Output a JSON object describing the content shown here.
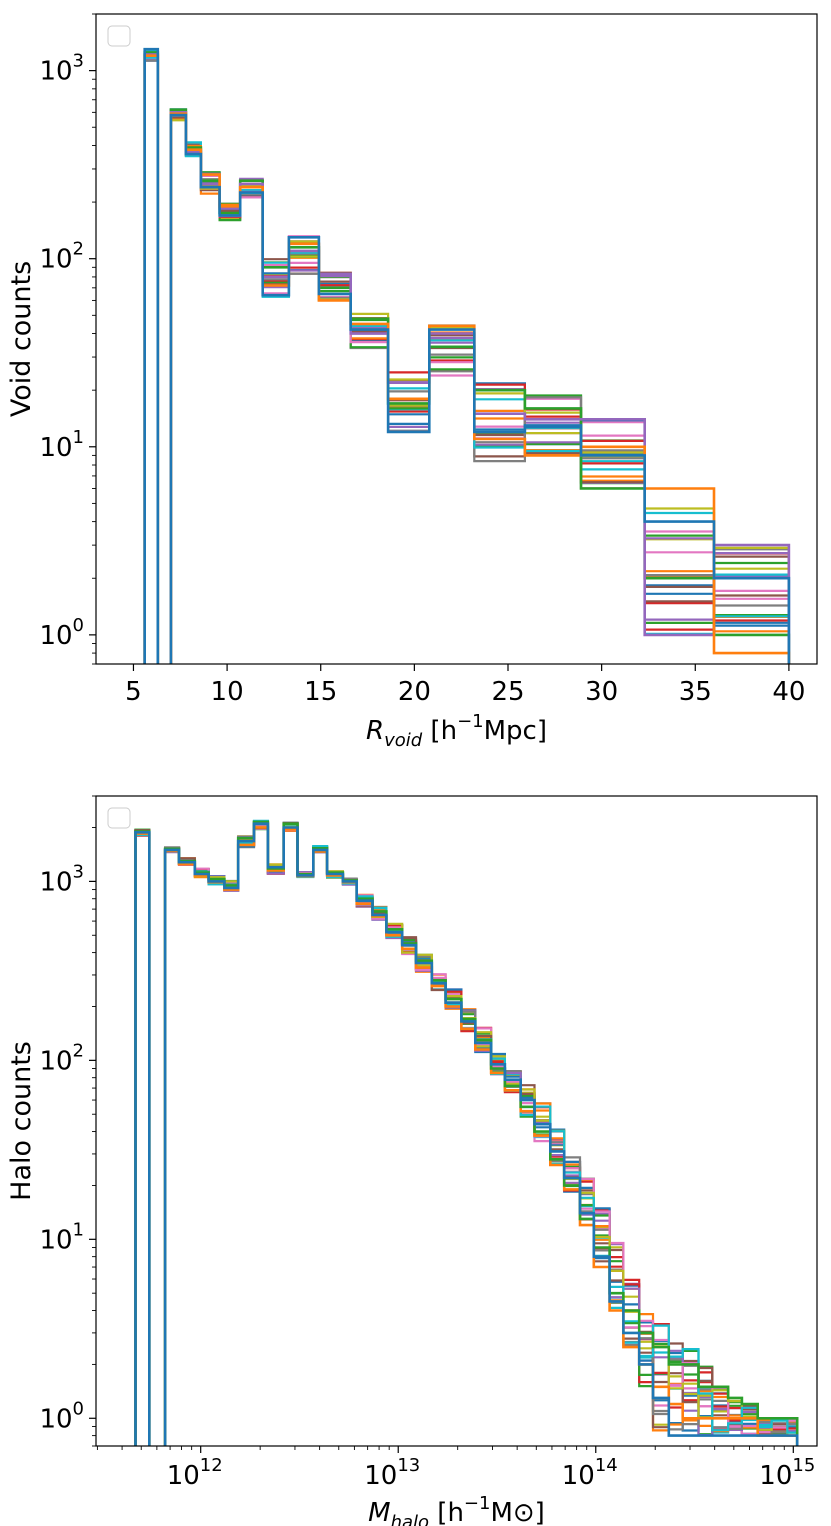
{
  "colors": [
    "#1f77b4",
    "#ff7f0e",
    "#2ca02c",
    "#d62728",
    "#9467bd",
    "#8c564b",
    "#e377c2",
    "#7f7f7f",
    "#bcbd22",
    "#17becf"
  ],
  "chart_data": [
    {
      "type": "histogram-step",
      "xscale": "linear",
      "yscale": "log",
      "xlim": [
        3,
        41.5
      ],
      "ylim": [
        0.7,
        2000
      ],
      "xticks": [
        5,
        10,
        15,
        20,
        25,
        30,
        35,
        40
      ],
      "xtick_labels": [
        "5",
        "10",
        "15",
        "20",
        "25",
        "30",
        "35",
        "40"
      ],
      "yticks": [
        1,
        10,
        100,
        1000
      ],
      "ytick_labels": [
        {
          "base": "10",
          "exp": "0"
        },
        {
          "base": "10",
          "exp": "1"
        },
        {
          "base": "10",
          "exp": "2"
        },
        {
          "base": "10",
          "exp": "3"
        }
      ],
      "xlabel": {
        "base": "R",
        "sub": "void",
        "rest": " [h",
        "sup": "−1",
        "tail": "Mpc]"
      },
      "ylabel": "Void counts",
      "legend": "top-left (empty)",
      "bin_edges": [
        5.6,
        6.3,
        7.0,
        7.8,
        8.6,
        9.6,
        10.7,
        11.9,
        13.3,
        14.9,
        16.6,
        18.6,
        20.8,
        23.2,
        25.9,
        28.9,
        32.3,
        36.0,
        40.0
      ],
      "series_count": 20,
      "bin_low": [
        1130,
        0,
        540,
        350,
        220,
        160,
        210,
        62,
        82,
        58,
        33,
        12,
        23,
        8,
        9,
        6,
        1,
        1
      ],
      "bin_high": [
        1300,
        0,
        630,
        420,
        290,
        200,
        270,
        100,
        135,
        85,
        52,
        27,
        45,
        24,
        19,
        14,
        6,
        3
      ],
      "highlight_series": [
        {
          "name": "blue",
          "color_index": 0,
          "values": [
            1300,
            0,
            580,
            360,
            240,
            170,
            225,
            64,
            130,
            65,
            42,
            12,
            42,
            12,
            13,
            9,
            4,
            2
          ]
        },
        {
          "name": "orange",
          "color_index": 1,
          "values": [
            1200,
            0,
            590,
            380,
            280,
            190,
            240,
            72,
            120,
            60,
            45,
            18,
            44,
            11,
            9,
            10,
            6,
            0.8
          ]
        },
        {
          "name": "purple",
          "color_index": 4,
          "values": [
            1220,
            0,
            600,
            370,
            250,
            185,
            250,
            80,
            110,
            83,
            40,
            22,
            40,
            15,
            14,
            14,
            1,
            3
          ]
        },
        {
          "name": "green",
          "color_index": 2,
          "values": [
            1250,
            0,
            620,
            390,
            260,
            175,
            260,
            90,
            115,
            70,
            48,
            17,
            34,
            20,
            16,
            6,
            2,
            1
          ]
        }
      ]
    },
    {
      "type": "histogram-step",
      "xscale": "log",
      "yscale": "log",
      "xlim_log10": [
        11.47,
        15.12
      ],
      "ylim": [
        0.7,
        3000
      ],
      "xticks_log10": [
        12,
        13,
        14,
        15
      ],
      "xtick_labels": [
        {
          "base": "10",
          "exp": "12"
        },
        {
          "base": "10",
          "exp": "13"
        },
        {
          "base": "10",
          "exp": "14"
        },
        {
          "base": "10",
          "exp": "15"
        }
      ],
      "yticks": [
        1,
        10,
        100,
        1000
      ],
      "ytick_labels": [
        {
          "base": "10",
          "exp": "0"
        },
        {
          "base": "10",
          "exp": "1"
        },
        {
          "base": "10",
          "exp": "2"
        },
        {
          "base": "10",
          "exp": "3"
        }
      ],
      "xlabel": {
        "base": "M",
        "sub": "halo",
        "rest": " [h",
        "sup": "−1",
        "tail": "M⊙]"
      },
      "ylabel": "Halo counts",
      "legend": "top-left (empty)",
      "bin_edges_log10": [
        11.67,
        11.74,
        11.82,
        11.89,
        11.97,
        12.04,
        12.12,
        12.19,
        12.27,
        12.34,
        12.42,
        12.49,
        12.57,
        12.64,
        12.72,
        12.79,
        12.87,
        12.94,
        13.02,
        13.09,
        13.17,
        13.24,
        13.32,
        13.39,
        13.47,
        13.54,
        13.62,
        13.69,
        13.77,
        13.84,
        13.92,
        13.99,
        14.07,
        14.14,
        14.22,
        14.29,
        14.37,
        14.44,
        14.52,
        14.59,
        14.67,
        14.74,
        14.82,
        14.89,
        14.97,
        15.02
      ],
      "series_count": 20,
      "bin_low": [
        1800,
        0,
        1450,
        1230,
        1050,
        960,
        880,
        1550,
        1950,
        1100,
        1900,
        1050,
        1450,
        1050,
        960,
        720,
        610,
        480,
        390,
        310,
        245,
        190,
        145,
        110,
        80,
        64,
        48,
        35,
        25,
        18,
        12,
        7,
        4,
        2.5,
        1.5,
        0.8,
        0.8,
        0.8,
        0.8,
        0.8,
        0.8,
        0.8,
        0.8,
        0.8,
        0.8
      ],
      "bin_high": [
        1950,
        0,
        1550,
        1350,
        1180,
        1080,
        1010,
        1800,
        2200,
        1250,
        2150,
        1130,
        1580,
        1150,
        1040,
        840,
        720,
        580,
        490,
        390,
        315,
        250,
        195,
        155,
        120,
        90,
        78,
        58,
        42,
        30,
        22,
        15,
        10,
        6,
        4,
        4,
        3,
        2.5,
        2,
        1.5,
        1.3,
        1.2,
        1,
        1,
        1
      ],
      "highlight_series": [
        {
          "name": "blue",
          "color_index": 0,
          "values": [
            1880,
            0,
            1500,
            1280,
            1100,
            1000,
            920,
            1680,
            2100,
            1200,
            2000,
            1080,
            1500,
            1100,
            1000,
            780,
            650,
            520,
            440,
            350,
            270,
            210,
            165,
            125,
            95,
            78,
            60,
            44,
            31,
            22,
            14,
            8,
            4.5,
            3,
            2,
            1.3,
            0.8,
            0.8,
            0.8,
            0.8,
            0.8,
            0.8,
            0.8,
            0.8,
            0.8
          ]
        },
        {
          "name": "green",
          "color_index": 2,
          "values": [
            1900,
            0,
            1520,
            1300,
            1120,
            1030,
            950,
            1750,
            2150,
            1180,
            2100,
            1100,
            1530,
            1120,
            1010,
            800,
            680,
            540,
            450,
            360,
            280,
            220,
            170,
            130,
            90,
            72,
            55,
            40,
            28,
            20,
            13,
            9,
            5,
            4,
            3,
            2.5,
            2,
            2,
            1.5,
            1.5,
            1.3,
            1.2,
            1,
            1,
            1
          ]
        },
        {
          "name": "orange",
          "color_index": 1,
          "values": [
            1850,
            0,
            1480,
            1250,
            1080,
            990,
            900,
            1600,
            2000,
            1150,
            1950,
            1070,
            1470,
            1080,
            990,
            750,
            640,
            500,
            420,
            330,
            260,
            200,
            150,
            115,
            85,
            68,
            52,
            38,
            26,
            19,
            12,
            7,
            4,
            2.5,
            2,
            1.5,
            1.2,
            1,
            1,
            1,
            1,
            1,
            0.8,
            0.8,
            0.8
          ]
        }
      ]
    }
  ]
}
